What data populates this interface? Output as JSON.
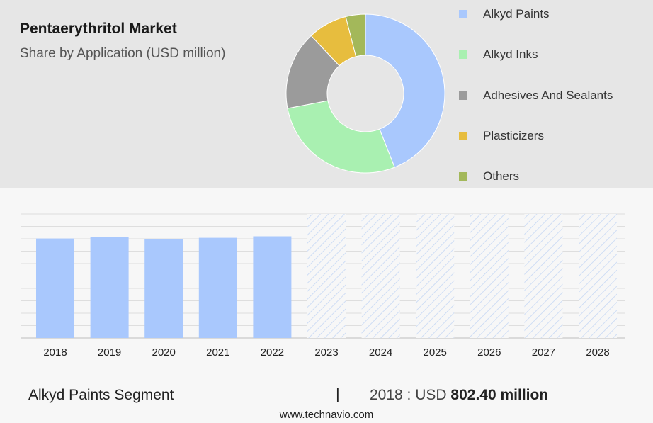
{
  "header": {
    "title": "Pentaerythritol Market",
    "subtitle": "Share by Application (USD million)"
  },
  "chart_data": [
    {
      "type": "pie",
      "variant": "donut",
      "categories": [
        "Alkyd Paints",
        "Alkyd Inks",
        "Adhesives And Sealants",
        "Plasticizers",
        "Others"
      ],
      "values": [
        44,
        28,
        16,
        8,
        4
      ],
      "colors": [
        "#a9c8fd",
        "#a9f0b1",
        "#9b9b9b",
        "#e7bd3e",
        "#a3b85a"
      ],
      "legend_position": "right"
    },
    {
      "type": "bar",
      "categories": [
        "2018",
        "2019",
        "2020",
        "2021",
        "2022",
        "2023",
        "2024",
        "2025",
        "2026",
        "2027",
        "2028"
      ],
      "series": [
        {
          "values": [
            802.4,
            812,
            797,
            808,
            820,
            null,
            null,
            null,
            null,
            null,
            null
          ],
          "color": "#a9c8fd"
        }
      ],
      "forecast_categories": [
        "2023",
        "2024",
        "2025",
        "2026",
        "2027",
        "2028"
      ],
      "ylim": [
        0,
        1000
      ],
      "grid": true
    }
  ],
  "footer": {
    "segment": "Alkyd Paints Segment",
    "separator": "|",
    "value_prefix": "2018 : USD",
    "value_bold": "802.40 million",
    "url": "www.technavio.com"
  }
}
